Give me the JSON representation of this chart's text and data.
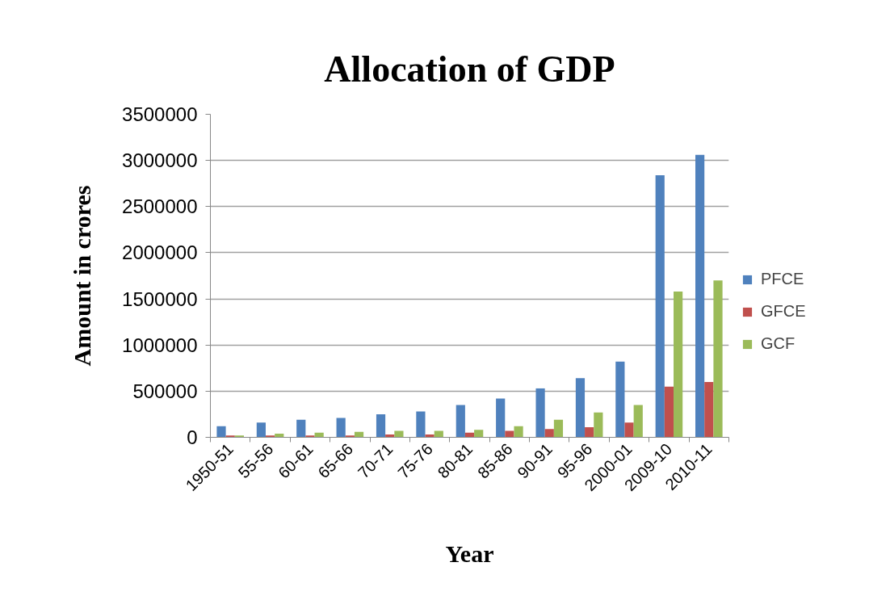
{
  "chart_data": {
    "type": "bar",
    "title": "Allocation of GDP",
    "xlabel": "Year",
    "ylabel": "Amount in crores",
    "categories": [
      "1950-51",
      "55-56",
      "60-61",
      "65-66",
      "70-71",
      "75-76",
      "80-81",
      "85-86",
      "90-91",
      "95-96",
      "2000-01",
      "2009-10",
      "2010-11"
    ],
    "series": [
      {
        "name": "PFCE",
        "color": "#4f81bd",
        "values": [
          120000,
          160000,
          190000,
          210000,
          250000,
          280000,
          350000,
          420000,
          530000,
          640000,
          820000,
          2840000,
          3060000
        ]
      },
      {
        "name": "GFCE",
        "color": "#c0504d",
        "values": [
          20000,
          20000,
          20000,
          20000,
          30000,
          30000,
          50000,
          70000,
          90000,
          110000,
          160000,
          550000,
          600000
        ]
      },
      {
        "name": "GCF",
        "color": "#9bbb59",
        "values": [
          20000,
          40000,
          50000,
          60000,
          70000,
          70000,
          80000,
          120000,
          190000,
          270000,
          350000,
          1580000,
          1700000
        ]
      }
    ],
    "ylim": [
      0,
      3500000
    ],
    "yticks": [
      0,
      500000,
      1000000,
      1500000,
      2000000,
      2500000,
      3000000,
      3500000
    ],
    "grid": "y",
    "legend": "right"
  }
}
